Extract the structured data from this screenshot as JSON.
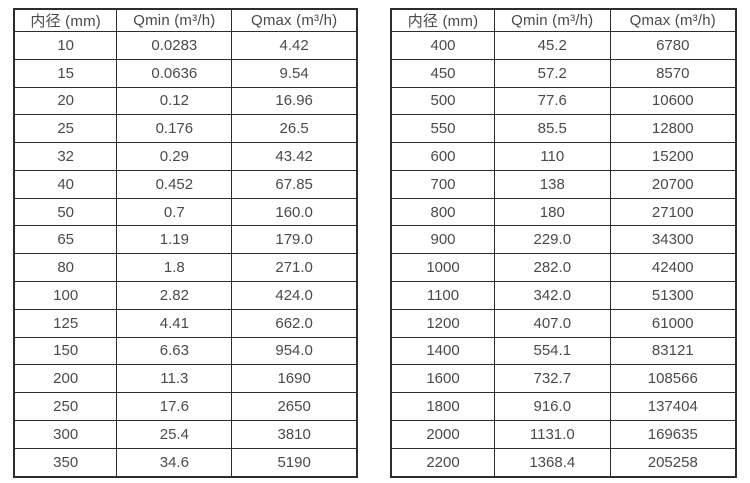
{
  "colors": {
    "background": "#ffffff",
    "border": "#2d2d2d",
    "text": "#4a4a4a"
  },
  "tables": [
    {
      "name": "flow-spec-table-small-diameters",
      "headers": [
        "内径 (mm)",
        "Qmin (m³/h)",
        "Qmax (m³/h)"
      ],
      "rows": [
        [
          "10",
          "0.0283",
          "4.42"
        ],
        [
          "15",
          "0.0636",
          "9.54"
        ],
        [
          "20",
          "0.12",
          "16.96"
        ],
        [
          "25",
          "0.176",
          "26.5"
        ],
        [
          "32",
          "0.29",
          "43.42"
        ],
        [
          "40",
          "0.452",
          "67.85"
        ],
        [
          "50",
          "0.7",
          "160.0"
        ],
        [
          "65",
          "1.19",
          "179.0"
        ],
        [
          "80",
          "1.8",
          "271.0"
        ],
        [
          "100",
          "2.82",
          "424.0"
        ],
        [
          "125",
          "4.41",
          "662.0"
        ],
        [
          "150",
          "6.63",
          "954.0"
        ],
        [
          "200",
          "11.3",
          "1690"
        ],
        [
          "250",
          "17.6",
          "2650"
        ],
        [
          "300",
          "25.4",
          "3810"
        ],
        [
          "350",
          "34.6",
          "5190"
        ]
      ]
    },
    {
      "name": "flow-spec-table-large-diameters",
      "headers": [
        "内径 (mm)",
        "Qmin (m³/h)",
        "Qmax (m³/h)"
      ],
      "rows": [
        [
          "400",
          "45.2",
          "6780"
        ],
        [
          "450",
          "57.2",
          "8570"
        ],
        [
          "500",
          "77.6",
          "10600"
        ],
        [
          "550",
          "85.5",
          "12800"
        ],
        [
          "600",
          "110",
          "15200"
        ],
        [
          "700",
          "138",
          "20700"
        ],
        [
          "800",
          "180",
          "27100"
        ],
        [
          "900",
          "229.0",
          "34300"
        ],
        [
          "1000",
          "282.0",
          "42400"
        ],
        [
          "1100",
          "342.0",
          "51300"
        ],
        [
          "1200",
          "407.0",
          "61000"
        ],
        [
          "1400",
          "554.1",
          "83121"
        ],
        [
          "1600",
          "732.7",
          "108566"
        ],
        [
          "1800",
          "916.0",
          "137404"
        ],
        [
          "2000",
          "1131.0",
          "169635"
        ],
        [
          "2200",
          "1368.4",
          "205258"
        ]
      ]
    }
  ]
}
